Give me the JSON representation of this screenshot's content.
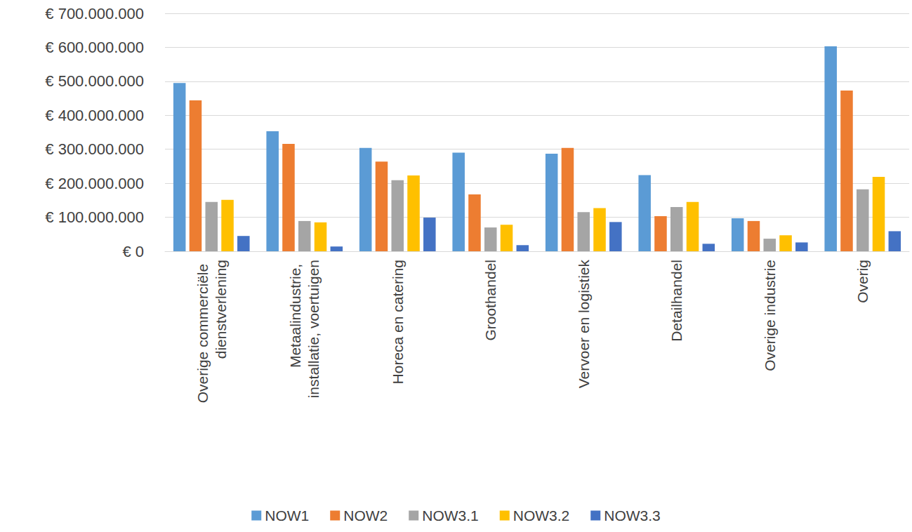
{
  "chart_data": {
    "type": "bar",
    "categories": [
      "Overige commerciële dienstverlening",
      "Metaalindustrie, installatie, voertuigen",
      "Horeca en catering",
      "Groothandel",
      "Vervoer en logistiek",
      "Detailhandel",
      "Overige industrie",
      "Overig"
    ],
    "series": [
      {
        "name": "NOW1",
        "color": "#5b9bd5",
        "values": [
          495000000,
          353000000,
          304000000,
          290000000,
          287000000,
          224000000,
          97000000,
          603000000
        ]
      },
      {
        "name": "NOW2",
        "color": "#ed7d31",
        "values": [
          444000000,
          316000000,
          264000000,
          167000000,
          304000000,
          103000000,
          89000000,
          473000000
        ]
      },
      {
        "name": "NOW3.1",
        "color": "#a5a5a5",
        "values": [
          145000000,
          89000000,
          209000000,
          70000000,
          115000000,
          130000000,
          37000000,
          182000000
        ]
      },
      {
        "name": "NOW3.2",
        "color": "#ffc000",
        "values": [
          151000000,
          85000000,
          223000000,
          78000000,
          127000000,
          145000000,
          47000000,
          219000000
        ]
      },
      {
        "name": "NOW3.3",
        "color": "#4472c4",
        "values": [
          45000000,
          14000000,
          99000000,
          18000000,
          86000000,
          22000000,
          26000000,
          59000000
        ]
      }
    ],
    "ylim": [
      0,
      700000000
    ],
    "yticks": [
      {
        "value": 0,
        "label": "€ 0"
      },
      {
        "value": 100000000,
        "label": "€ 100.000.000"
      },
      {
        "value": 200000000,
        "label": "€ 200.000.000"
      },
      {
        "value": 300000000,
        "label": "€ 300.000.000"
      },
      {
        "value": 400000000,
        "label": "€ 400.000.000"
      },
      {
        "value": 500000000,
        "label": "€ 500.000.000"
      },
      {
        "value": 600000000,
        "label": "€ 600.000.000"
      },
      {
        "value": 700000000,
        "label": "€ 700.000.000"
      }
    ],
    "grid": true,
    "legend": "bottom"
  }
}
